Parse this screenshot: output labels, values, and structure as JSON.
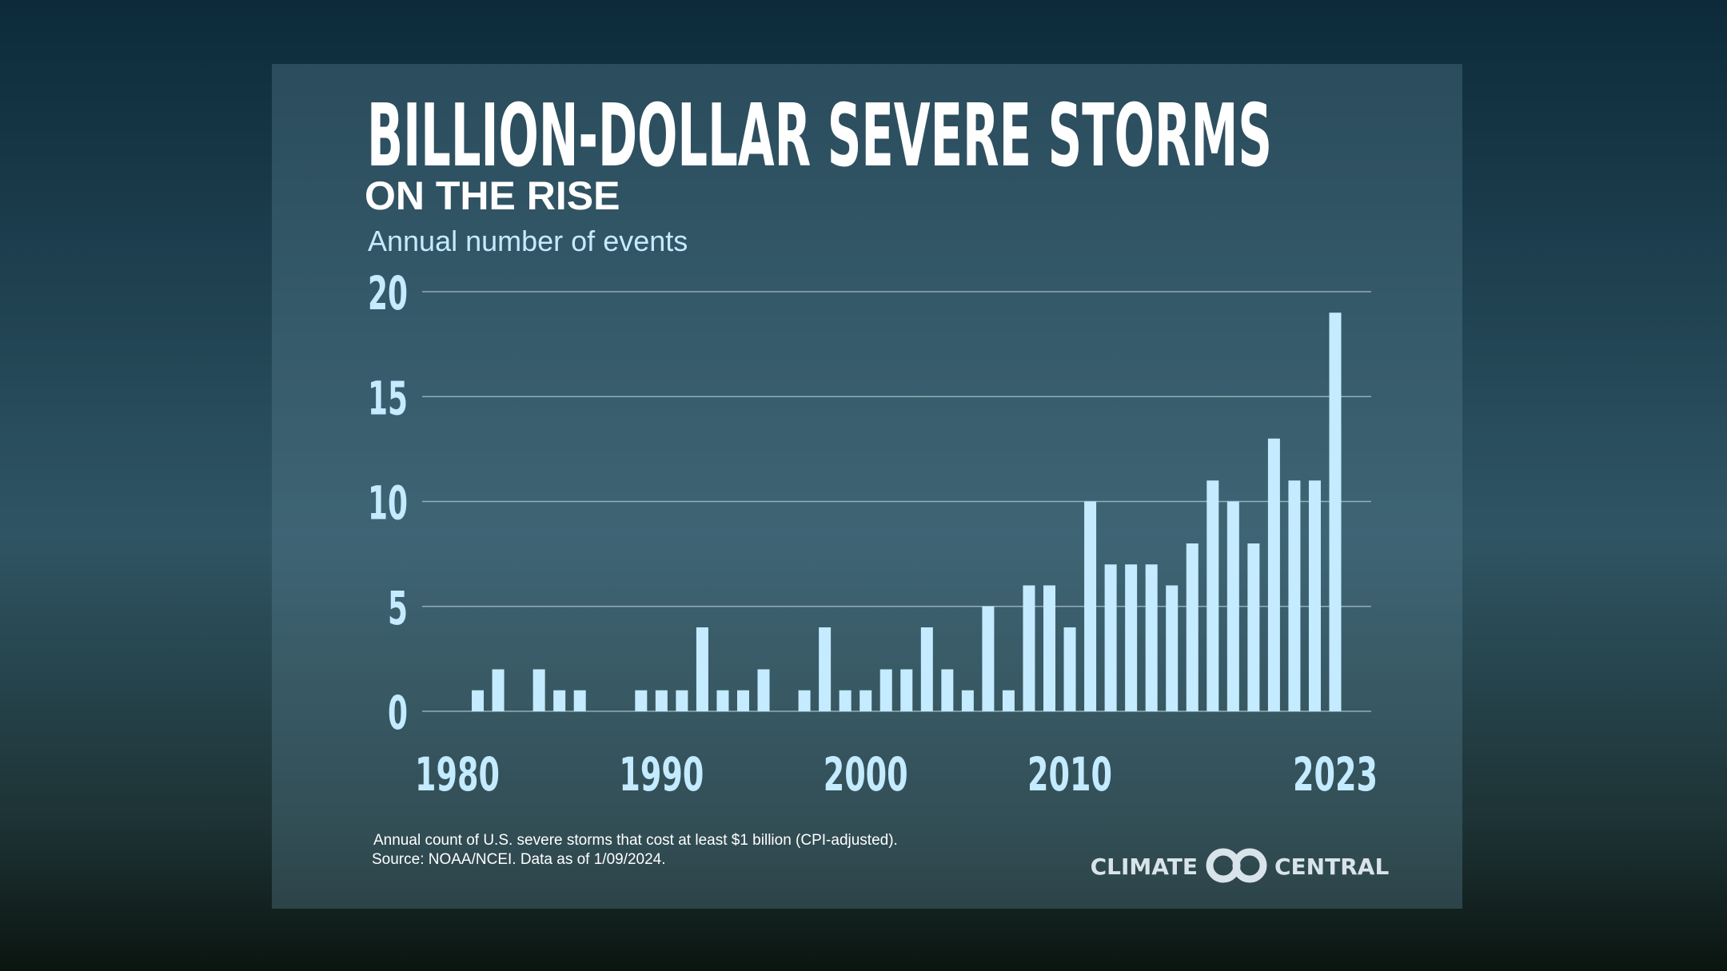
{
  "chart_data": {
    "type": "bar",
    "title": "BILLION-DOLLAR SEVERE STORMS",
    "subtitle": "ON THE RISE",
    "y_label": "Annual number of events",
    "categories": [
      "1980",
      null,
      null,
      null,
      null,
      null,
      null,
      null,
      null,
      null,
      "1990",
      null,
      null,
      null,
      null,
      null,
      null,
      null,
      null,
      null,
      "2000",
      null,
      null,
      null,
      null,
      null,
      null,
      null,
      null,
      null,
      "2010",
      null,
      null,
      null,
      null,
      null,
      null,
      null,
      null,
      null,
      null,
      null,
      null,
      "2023"
    ],
    "values": [
      0,
      1,
      2,
      0,
      2,
      1,
      1,
      0,
      0,
      1,
      1,
      1,
      4,
      1,
      1,
      2,
      0,
      1,
      4,
      1,
      1,
      2,
      2,
      4,
      2,
      1,
      5,
      1,
      6,
      6,
      4,
      10,
      7,
      7,
      7,
      6,
      8,
      11,
      10,
      8,
      13,
      11,
      11,
      19
    ],
    "color": "#c4ebff",
    "ylim": [
      0,
      20
    ],
    "yticks": [
      0,
      5,
      10,
      15,
      20
    ],
    "grid": true,
    "notes": [
      "Annual count of U.S. severe storms that cost at least $1 billion (CPI-adjusted).",
      "Source: NOAA/NCEI. Data as of 1/09/2024."
    ],
    "logo": {
      "left": "CLIMATE",
      "right": "CENTRAL"
    }
  }
}
